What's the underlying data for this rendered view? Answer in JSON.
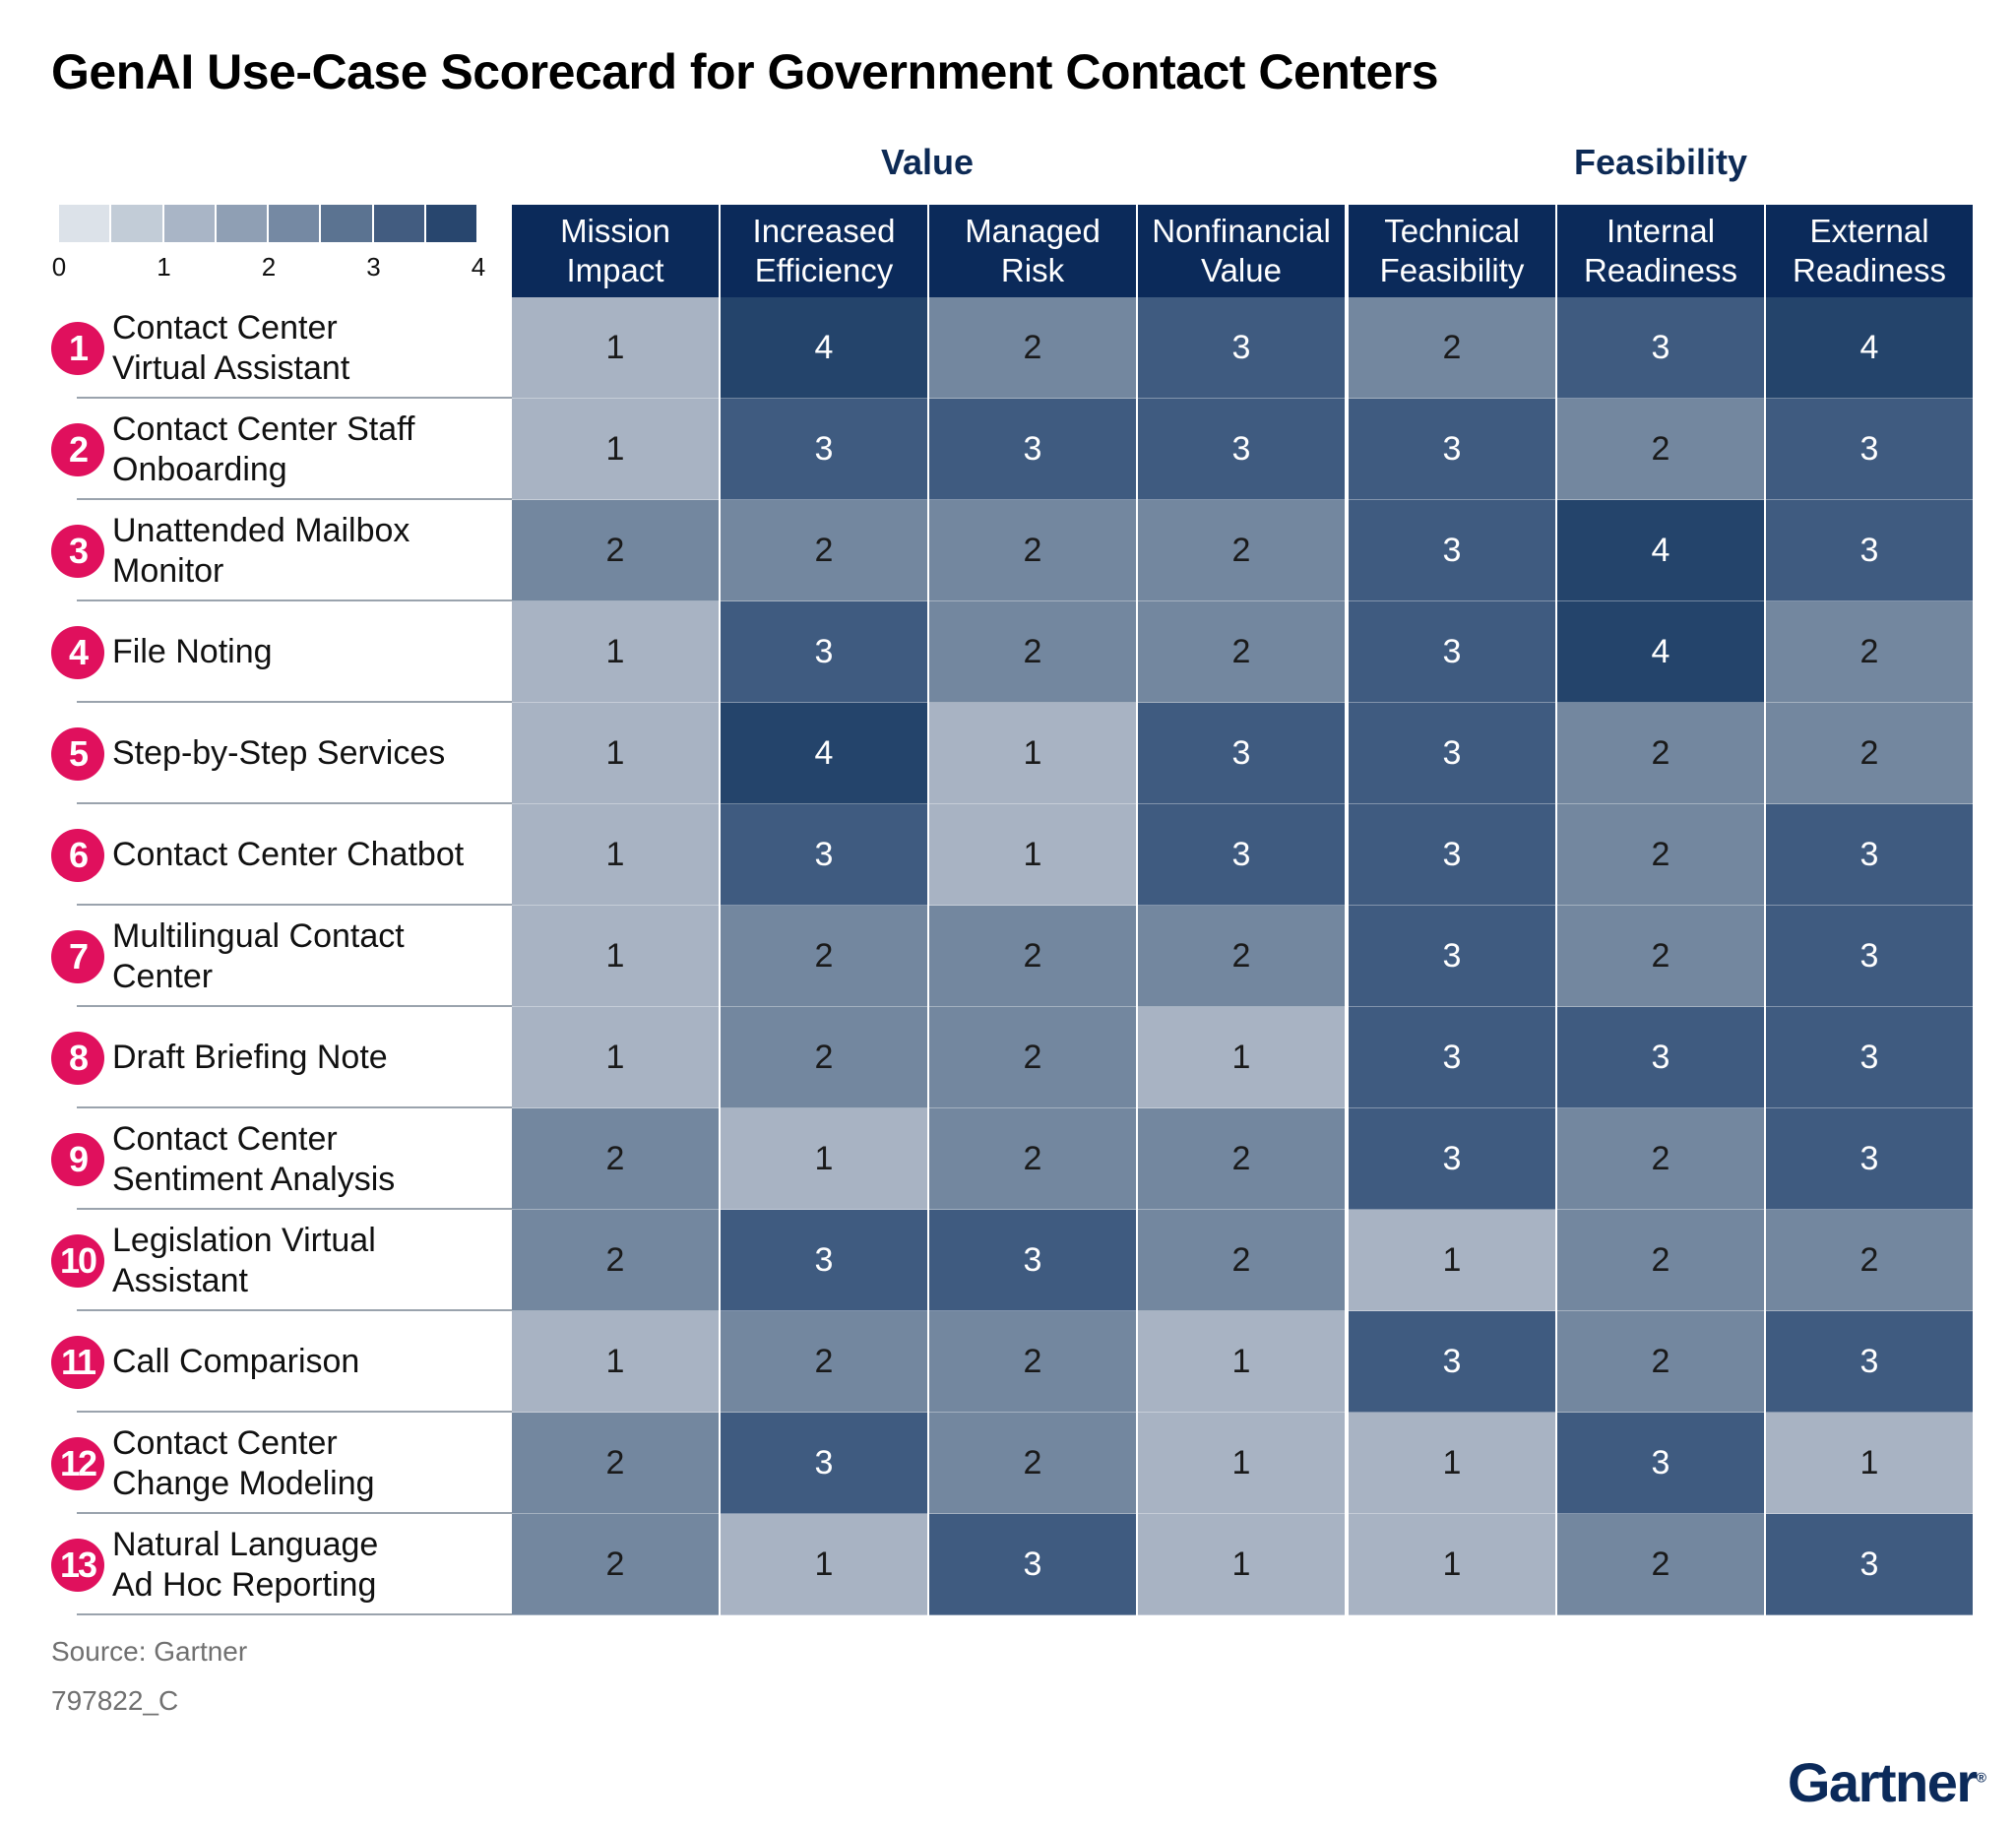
{
  "title": "GenAI Use-Case Scorecard for Government Contact Centers",
  "groups": {
    "value": "Value",
    "feasibility": "Feasibility"
  },
  "legend": {
    "ticks": [
      "0",
      "1",
      "2",
      "3",
      "4"
    ],
    "steps": 8,
    "min": 0,
    "max": 4
  },
  "colors": {
    "header": "#0b2a5a",
    "badge": "#e0105d",
    "score_1": "#a8b3c3",
    "score_2": "#73879f",
    "score_3": "#3f5b80",
    "score_4": "#24446b"
  },
  "chart_data": {
    "type": "heatmap",
    "title": "GenAI Use-Case Scorecard for Government Contact Centers",
    "columns": [
      "Mission\nImpact",
      "Increased\nEfficiency",
      "Managed\nRisk",
      "Nonfinancial\nValue",
      "Technical\nFeasibility",
      "Internal\nReadiness",
      "External\nReadiness"
    ],
    "column_groups": [
      {
        "name": "Value",
        "columns": [
          0,
          1,
          2,
          3
        ]
      },
      {
        "name": "Feasibility",
        "columns": [
          4,
          5,
          6
        ]
      }
    ],
    "scale": [
      0,
      4
    ],
    "rows": [
      {
        "num": "1",
        "label": "Contact Center\nVirtual Assistant",
        "values": [
          1,
          4,
          2,
          3,
          2,
          3,
          4
        ]
      },
      {
        "num": "2",
        "label": "Contact Center Staff\nOnboarding",
        "values": [
          1,
          3,
          3,
          3,
          3,
          2,
          3
        ]
      },
      {
        "num": "3",
        "label": "Unattended Mailbox\nMonitor",
        "values": [
          2,
          2,
          2,
          2,
          3,
          4,
          3
        ]
      },
      {
        "num": "4",
        "label": "File Noting",
        "values": [
          1,
          3,
          2,
          2,
          3,
          4,
          2
        ]
      },
      {
        "num": "5",
        "label": "Step-by-Step Services",
        "values": [
          1,
          4,
          1,
          3,
          3,
          2,
          2
        ]
      },
      {
        "num": "6",
        "label": "Contact Center Chatbot",
        "values": [
          1,
          3,
          1,
          3,
          3,
          2,
          3
        ]
      },
      {
        "num": "7",
        "label": "Multilingual Contact\nCenter",
        "values": [
          1,
          2,
          2,
          2,
          3,
          2,
          3
        ]
      },
      {
        "num": "8",
        "label": "Draft Briefing Note",
        "values": [
          1,
          2,
          2,
          1,
          3,
          3,
          3
        ]
      },
      {
        "num": "9",
        "label": "Contact Center\nSentiment Analysis",
        "values": [
          2,
          1,
          2,
          2,
          3,
          2,
          3
        ]
      },
      {
        "num": "10",
        "label": "Legislation Virtual\nAssistant",
        "values": [
          2,
          3,
          3,
          2,
          1,
          2,
          2
        ]
      },
      {
        "num": "11",
        "label": "Call Comparison",
        "values": [
          1,
          2,
          2,
          1,
          3,
          2,
          3
        ]
      },
      {
        "num": "12",
        "label": "Contact Center\nChange Modeling",
        "values": [
          2,
          3,
          2,
          1,
          1,
          3,
          1
        ]
      },
      {
        "num": "13",
        "label": "Natural Language\nAd Hoc Reporting",
        "values": [
          2,
          1,
          3,
          1,
          1,
          2,
          3
        ]
      }
    ]
  },
  "footer": {
    "source": "Source: Gartner",
    "doc_id": "797822_C",
    "logo": "Gartner"
  }
}
